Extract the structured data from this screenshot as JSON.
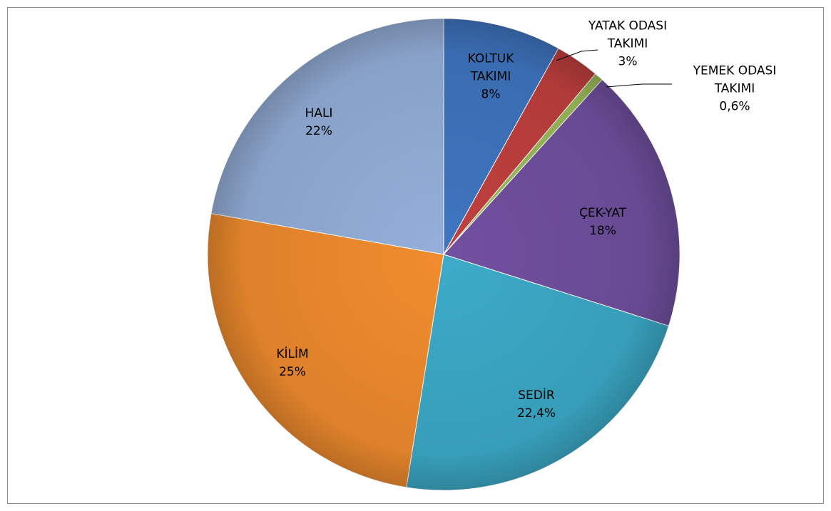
{
  "chart_data": {
    "type": "pie",
    "categories": [
      "KOLTUK TAKIMI",
      "YATAK ODASI TAKIMI",
      "YEMEK ODASI TAKIMI",
      "ÇEK-YAT",
      "SEDİR",
      "KİLİM",
      "HALI"
    ],
    "values": [
      8,
      3,
      0.6,
      18,
      22.4,
      25,
      22
    ],
    "value_labels": [
      "8%",
      "3%",
      "0,6%",
      "18%",
      "22,4%",
      "25%",
      "22%"
    ],
    "colors": [
      "#3f75c0",
      "#c0403e",
      "#9bbb59",
      "#7150a0",
      "#3cabc9",
      "#f18c2e",
      "#94afd9"
    ]
  }
}
